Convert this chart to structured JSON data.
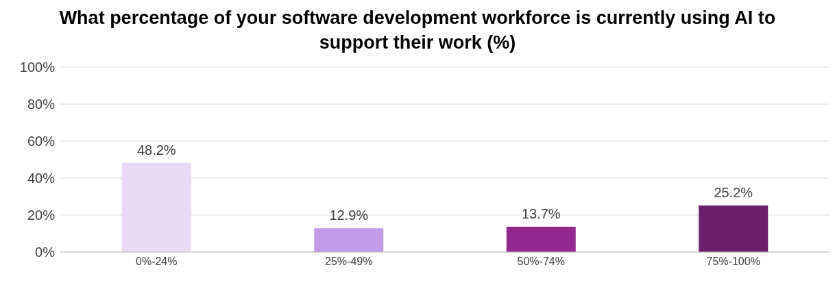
{
  "chart_data": {
    "type": "bar",
    "title": "What percentage of your software development workforce is currently using AI to support their work (%)",
    "categories": [
      "0%-24%",
      "25%-49%",
      "50%-74%",
      "75%-100%"
    ],
    "values": [
      48.2,
      12.9,
      13.7,
      25.2
    ],
    "colors": [
      "#ead9f4",
      "#c39be6",
      "#93298f",
      "#6b1e6a"
    ],
    "value_labels": [
      "48.2%",
      "12.9%",
      "13.7%",
      "25.2%"
    ],
    "ylim": [
      0,
      100
    ],
    "yticks": [
      {
        "value": 0,
        "label": "0%"
      },
      {
        "value": 20,
        "label": "20%"
      },
      {
        "value": 40,
        "label": "40%"
      },
      {
        "value": 60,
        "label": "60%"
      },
      {
        "value": 80,
        "label": "80%"
      },
      {
        "value": 100,
        "label": "100%"
      }
    ],
    "grid": "y"
  }
}
